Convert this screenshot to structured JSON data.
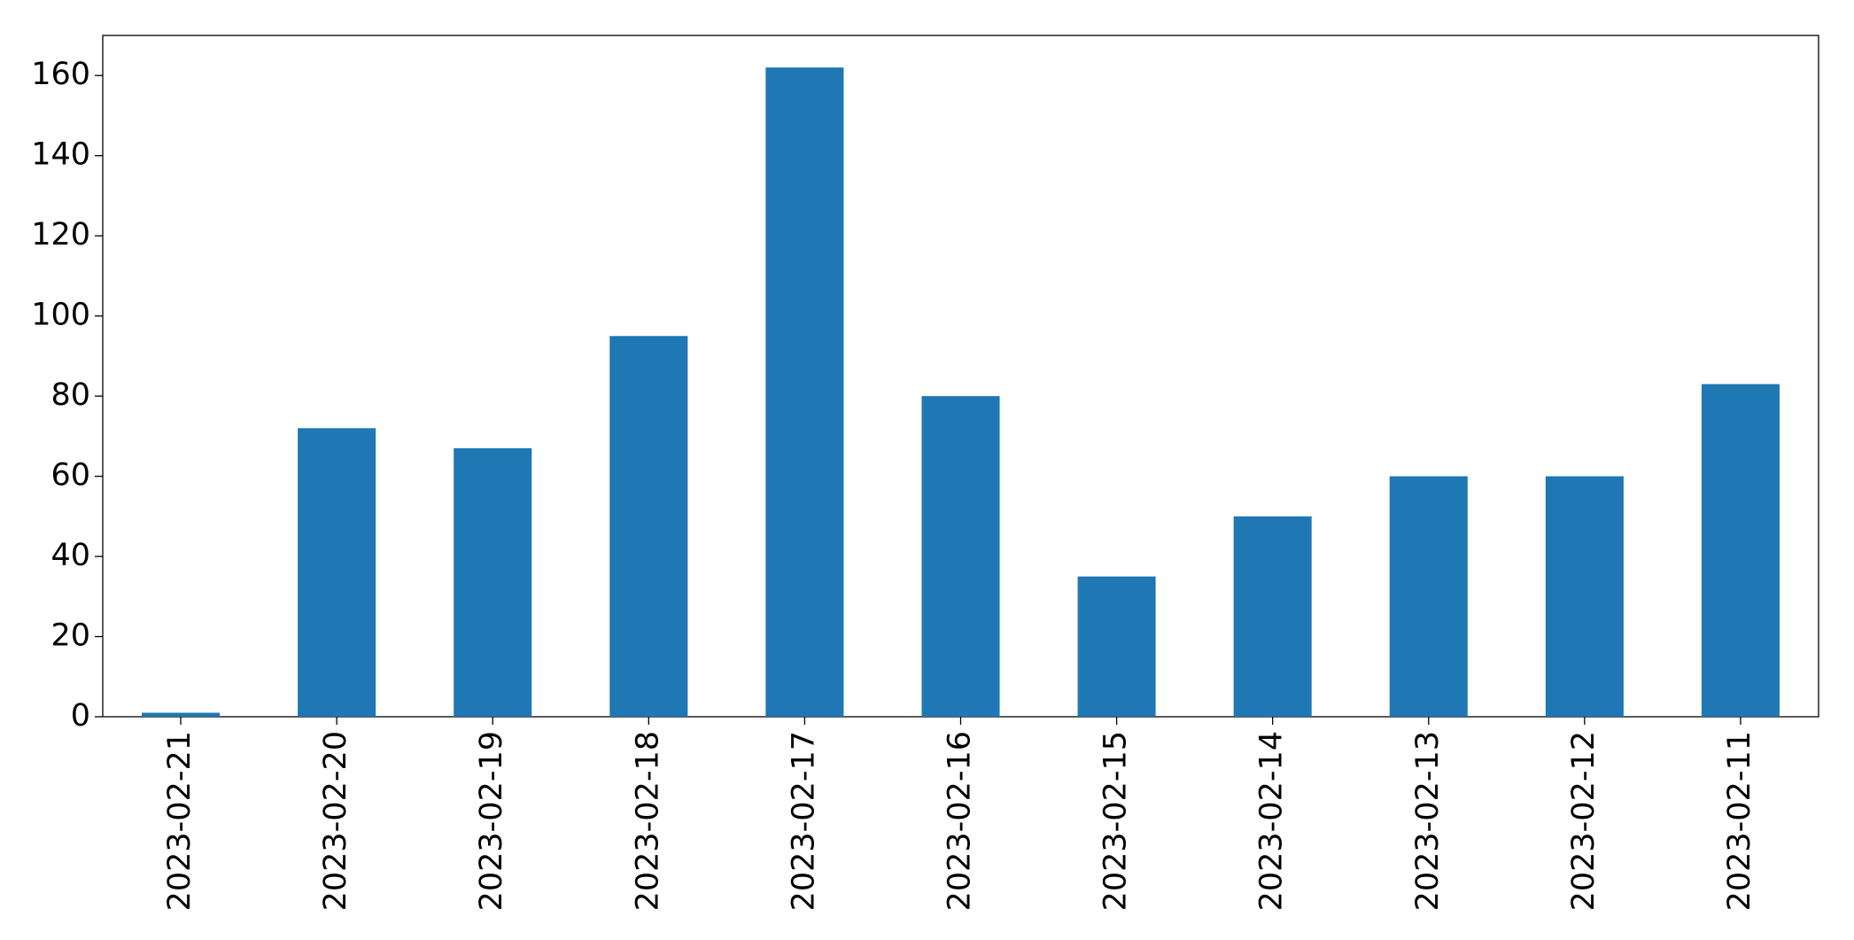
{
  "chart_data": {
    "type": "bar",
    "categories": [
      "2023-02-21",
      "2023-02-20",
      "2023-02-19",
      "2023-02-18",
      "2023-02-17",
      "2023-02-16",
      "2023-02-15",
      "2023-02-14",
      "2023-02-13",
      "2023-02-12",
      "2023-02-11"
    ],
    "values": [
      1,
      72,
      67,
      95,
      162,
      80,
      35,
      50,
      60,
      60,
      83
    ],
    "color": "#1f77b4",
    "ylim": [
      0,
      170
    ],
    "yticks": [
      0,
      20,
      40,
      60,
      80,
      100,
      120,
      140,
      160
    ],
    "grid": false
  }
}
